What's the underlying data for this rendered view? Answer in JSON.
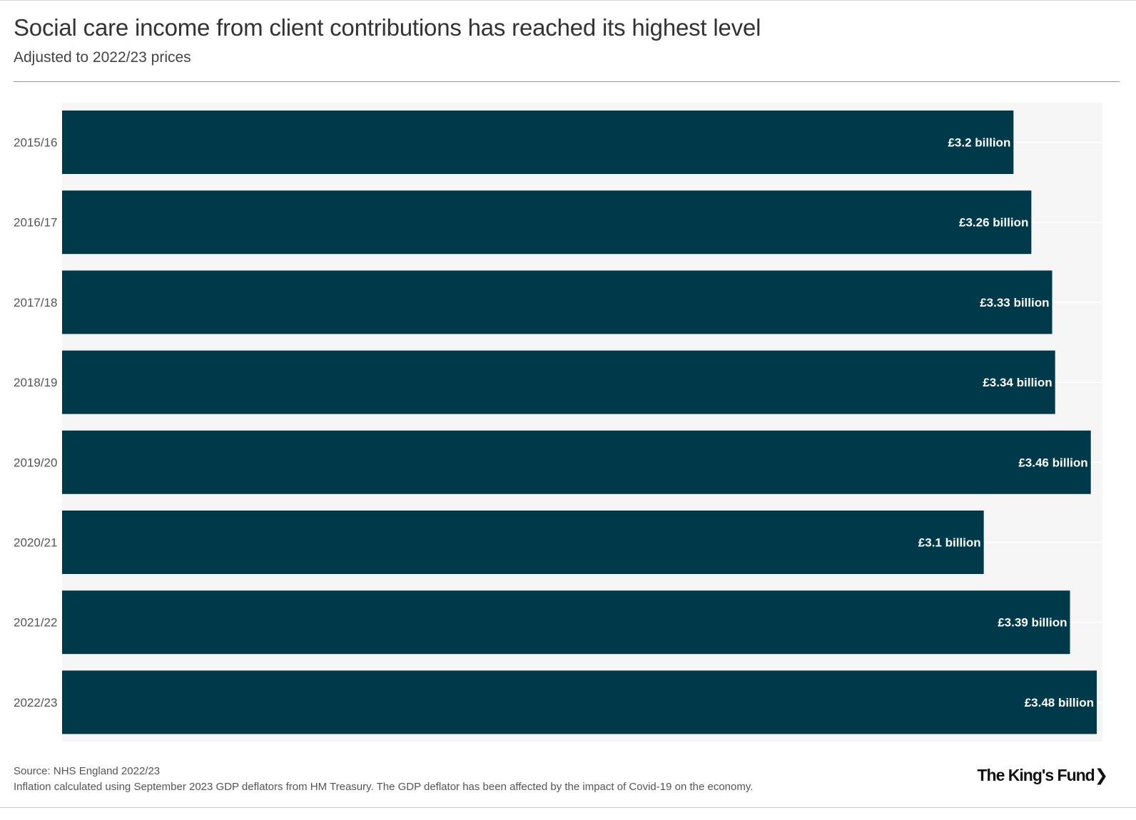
{
  "header": {
    "title": "Social care income from client contributions has reached its highest level",
    "subtitle": "Adjusted to 2022/23 prices"
  },
  "footer": {
    "source": "Source: NHS England 2022/23",
    "note": "Inflation calculated using September 2023 GDP deflators from HM Treasury. The GDP deflator has been affected by the impact of Covid-19 on the economy.",
    "logo": "The King's Fund❯"
  },
  "colors": {
    "bar": "#003a4a",
    "plot_background": "#f6f5f5",
    "gridline": "#ffffff",
    "bar_label": "#ffffff",
    "category_label": "#555555"
  },
  "chart_data": {
    "type": "bar",
    "orientation": "horizontal",
    "categories": [
      "2015/16",
      "2016/17",
      "2017/18",
      "2018/19",
      "2019/20",
      "2020/21",
      "2021/22",
      "2022/23"
    ],
    "values": [
      3.2,
      3.26,
      3.33,
      3.34,
      3.46,
      3.1,
      3.39,
      3.48
    ],
    "data_labels": [
      "£3.2 billion",
      "£3.26 billion",
      "£3.33 billion",
      "£3.34 billion",
      "£3.46 billion",
      "£3.1 billion",
      "£3.39 billion",
      "£3.48 billion"
    ],
    "unit": "£ billion",
    "title": "Social care income from client contributions has reached its highest level",
    "subtitle": "Adjusted to 2022/23 prices",
    "xlim": [
      0,
      3.48
    ],
    "grid": true,
    "legend": "none"
  }
}
